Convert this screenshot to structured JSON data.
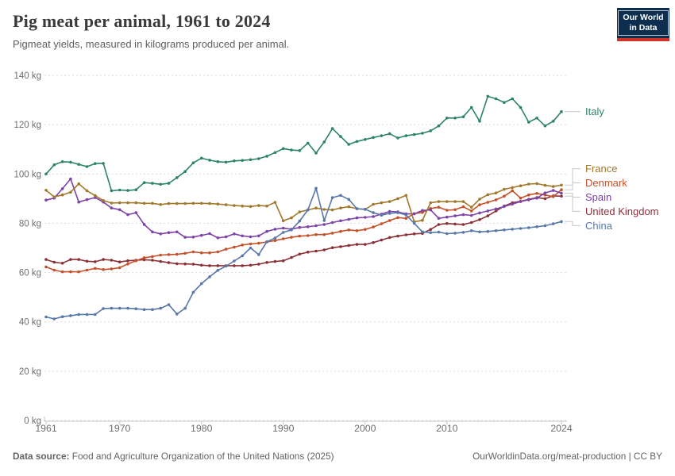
{
  "header": {
    "title": "Pig meat per animal, 1961 to 2024",
    "subtitle": "Pigmeat yields, measured in kilograms produced per animal.",
    "logo": {
      "line1": "Our World",
      "line2": "in Data"
    }
  },
  "footer": {
    "source_label": "Data source:",
    "source_text": "Food and Agriculture Organization of the United Nations (2025)",
    "link_text": "OurWorldinData.org/meat-production | CC BY"
  },
  "colors": {
    "grid": "#DBDBDB",
    "axis": "#C4C4C4",
    "tick_text": "#6E6E6E",
    "connector": "#C9C9C9"
  },
  "chart_data": {
    "type": "line",
    "title": "Pig meat per animal, 1961 to 2024",
    "subtitle": "Pigmeat yields, measured in kilograms produced per animal.",
    "unit": "kg",
    "ylim": [
      0,
      140
    ],
    "grid": "horizontal-dashed",
    "legend_position": "right-of-line-ends",
    "y_ticks": [
      0,
      20,
      40,
      60,
      80,
      100,
      120,
      140
    ],
    "y_tick_suffix": " kg",
    "x_ticks": [
      1961,
      1970,
      1980,
      1990,
      2000,
      2010,
      2024
    ],
    "x": [
      1961,
      1962,
      1963,
      1964,
      1965,
      1966,
      1967,
      1968,
      1969,
      1970,
      1971,
      1972,
      1973,
      1974,
      1975,
      1976,
      1977,
      1978,
      1979,
      1980,
      1981,
      1982,
      1983,
      1984,
      1985,
      1986,
      1987,
      1988,
      1989,
      1990,
      1991,
      1992,
      1993,
      1994,
      1995,
      1996,
      1997,
      1998,
      1999,
      2000,
      2001,
      2002,
      2003,
      2004,
      2005,
      2006,
      2007,
      2008,
      2009,
      2010,
      2011,
      2012,
      2013,
      2014,
      2015,
      2016,
      2017,
      2018,
      2019,
      2020,
      2021,
      2022,
      2023,
      2024
    ],
    "series": [
      {
        "name": "Italy",
        "color": "#2C8465",
        "values": [
          100,
          103.7,
          105,
          104.8,
          103.9,
          103,
          104.2,
          104.3,
          93.2,
          93.5,
          93.3,
          93.6,
          96.5,
          96.2,
          95.8,
          96.2,
          98.5,
          101,
          104.5,
          106.4,
          105.6,
          105,
          104.8,
          105.3,
          105.5,
          105.8,
          106.2,
          107.2,
          108.7,
          110.3,
          109.7,
          109.5,
          112.5,
          108.5,
          113,
          118.4,
          115.2,
          112,
          113.2,
          114,
          114.8,
          115.5,
          116.3,
          114.6,
          115.5,
          116,
          116.5,
          117.5,
          119.5,
          122.7,
          122.7,
          123.2,
          127,
          121.4,
          131.5,
          130.5,
          129,
          130.5,
          127,
          121,
          122.7,
          119.5,
          121.4,
          125.3
        ]
      },
      {
        "name": "France",
        "color": "#A2782B",
        "values": [
          93.4,
          90.7,
          91.5,
          92.6,
          96,
          93.2,
          91.2,
          89.2,
          88.2,
          88.3,
          88.3,
          88.3,
          88.1,
          88.1,
          87.6,
          88,
          88,
          88,
          88.1,
          88.1,
          88,
          87.8,
          87.5,
          87.2,
          87,
          86.8,
          87.2,
          87,
          88.5,
          81,
          82.2,
          84.6,
          85.4,
          86.2,
          85.6,
          85.4,
          86.2,
          86.7,
          85.9,
          85.6,
          87.7,
          88.3,
          88.8,
          90,
          91.3,
          80.6,
          81.2,
          88.3,
          88.8,
          88.8,
          88.8,
          88.8,
          86.5,
          89.8,
          91.6,
          92.3,
          93.8,
          94.5,
          95.2,
          95.9,
          96.1,
          95.4,
          94.9,
          95.5
        ]
      },
      {
        "name": "Denmark",
        "color": "#C4512A",
        "values": [
          62.3,
          61,
          60.3,
          60.3,
          60.3,
          61,
          61.7,
          61.2,
          61.5,
          62,
          63.5,
          64.8,
          66,
          66.5,
          67.1,
          67.3,
          67.4,
          67.8,
          68.4,
          68,
          68,
          68.4,
          69.5,
          70.3,
          71.2,
          71.6,
          71.9,
          72.4,
          73,
          73.7,
          74.3,
          74.8,
          75,
          75.4,
          75.4,
          76,
          76.7,
          77.3,
          77,
          77.5,
          78.5,
          79.8,
          81.1,
          82.3,
          82,
          83.9,
          84.4,
          86,
          86.5,
          85.3,
          85.5,
          86.7,
          85,
          87.5,
          88.5,
          89.5,
          91,
          93.2,
          90.2,
          91.5,
          92.1,
          91.5,
          90.8,
          93.6
        ]
      },
      {
        "name": "Spain",
        "color": "#7E43A9",
        "values": [
          89.4,
          90.2,
          94,
          98,
          88.6,
          89.6,
          90.4,
          88.6,
          86.2,
          85.5,
          83.5,
          84.3,
          79.5,
          76.5,
          75.7,
          76.2,
          76.5,
          74.3,
          74.4,
          75.1,
          75.8,
          74.1,
          74.5,
          75.7,
          74.9,
          74.5,
          74.9,
          76.7,
          77.6,
          78,
          77.6,
          78.3,
          78.6,
          79,
          79.5,
          80.3,
          81,
          81.6,
          82.2,
          82.4,
          82.7,
          83.7,
          84.8,
          84.6,
          83.8,
          83.8,
          85.2,
          85.4,
          82,
          82.5,
          83,
          83.5,
          83.2,
          84.2,
          85,
          85.8,
          86.8,
          87.8,
          88.8,
          89.5,
          90.2,
          92.3,
          93.3,
          92.2
        ]
      },
      {
        "name": "United Kingdom",
        "color": "#8B3039",
        "values": [
          65.3,
          64.2,
          63.8,
          65.3,
          65.3,
          64.6,
          64.4,
          65.3,
          65,
          64.3,
          64.8,
          65,
          65.2,
          65,
          64.5,
          64,
          63.6,
          63.5,
          63.4,
          63,
          62.8,
          62.8,
          62.8,
          62.8,
          62.8,
          63,
          63.4,
          64.1,
          64.5,
          64.8,
          66.1,
          67.5,
          68.3,
          68.7,
          69.2,
          70.1,
          70.5,
          71,
          71.4,
          71.4,
          72.2,
          73.2,
          74.2,
          74.8,
          75.3,
          75.7,
          75.9,
          77.5,
          79.5,
          79.9,
          79.7,
          79.5,
          80.3,
          81.5,
          83,
          85,
          87,
          88.3,
          88.9,
          89.7,
          90.4,
          90,
          91.1,
          91
        ]
      },
      {
        "name": "China",
        "color": "#5878A8",
        "values": [
          42,
          41.2,
          42.1,
          42.5,
          43,
          43,
          43,
          45.4,
          45.5,
          45.5,
          45.5,
          45.3,
          45,
          45,
          45.5,
          47,
          43.2,
          45.5,
          52,
          55.5,
          58.3,
          60.9,
          62.6,
          64.7,
          66.8,
          70,
          67.3,
          72.5,
          74,
          76.3,
          77.3,
          80.9,
          85.4,
          94.2,
          81.1,
          90.4,
          91.3,
          89.7,
          85.9,
          85.7,
          84.3,
          83.3,
          84,
          84.3,
          83.4,
          80,
          76.5,
          76.2,
          76.4,
          75.8,
          76,
          76.3,
          77,
          76.5,
          76.7,
          77,
          77.3,
          77.6,
          77.9,
          78.2,
          78.6,
          79,
          79.8,
          80.7
        ]
      }
    ]
  }
}
